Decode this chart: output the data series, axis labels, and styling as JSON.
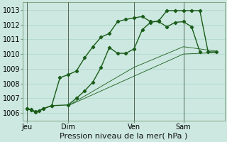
{
  "xlabel": "Pression niveau de la mer( hPa )",
  "bg_color": "#cce8e0",
  "grid_color": "#b0d8cc",
  "line_color": "#1a5c1a",
  "ylim": [
    1005.5,
    1013.5
  ],
  "yticks": [
    1006,
    1007,
    1008,
    1009,
    1010,
    1011,
    1012,
    1013
  ],
  "day_labels": [
    "Jeu",
    "Dim",
    "Ven",
    "Sam"
  ],
  "day_positions": [
    0,
    5,
    13,
    19
  ],
  "xlim": [
    -0.5,
    24
  ],
  "line1_x": [
    0,
    0.5,
    1,
    1.5,
    2,
    3,
    4,
    5,
    6,
    7,
    8,
    9,
    10,
    11,
    12,
    13,
    14,
    15,
    16,
    17,
    18,
    19,
    20,
    21
  ],
  "line1_y": [
    1006.3,
    1006.25,
    1006.1,
    1006.15,
    1006.3,
    1006.5,
    1008.4,
    1008.6,
    1008.85,
    1009.75,
    1010.5,
    1011.15,
    1011.4,
    1012.2,
    1012.35,
    1012.45,
    1012.55,
    1012.2,
    1012.2,
    1011.85,
    1012.15,
    1012.2,
    1011.85,
    1010.15
  ],
  "line2_x": [
    0,
    0.5,
    1,
    2,
    3,
    5,
    6,
    7,
    8,
    9,
    10,
    11,
    12,
    13,
    14,
    15,
    16,
    17,
    18,
    19,
    20,
    21,
    22,
    23
  ],
  "line2_y": [
    1006.3,
    1006.2,
    1006.05,
    1006.3,
    1006.5,
    1006.55,
    1007.0,
    1007.5,
    1008.1,
    1009.1,
    1010.45,
    1010.05,
    1010.05,
    1010.35,
    1011.65,
    1012.15,
    1012.25,
    1012.95,
    1012.95,
    1012.95,
    1012.95,
    1012.95,
    1010.15,
    1010.15
  ],
  "line3_x": [
    5,
    13,
    19,
    23
  ],
  "line3_y": [
    1006.5,
    1008.5,
    1010.0,
    1010.1
  ],
  "line4_x": [
    5,
    13,
    19,
    23
  ],
  "line4_y": [
    1006.5,
    1009.1,
    1010.5,
    1010.2
  ],
  "xlabel_fontsize": 8,
  "tick_fontsize": 7,
  "figure_width": 3.2,
  "figure_height": 2.0,
  "dpi": 100
}
